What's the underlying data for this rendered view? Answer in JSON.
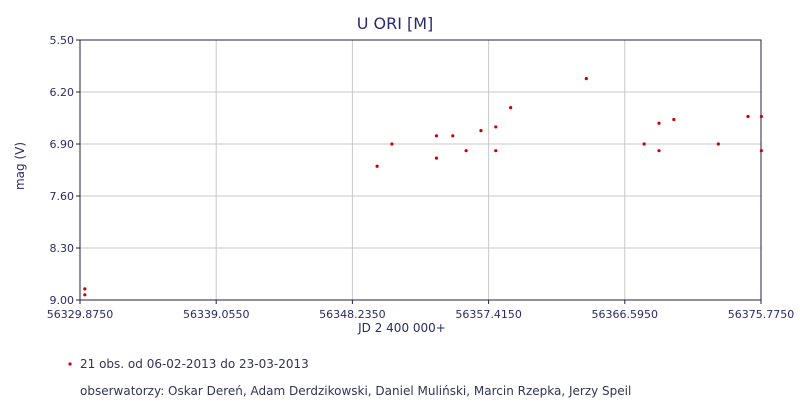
{
  "chart_data": {
    "type": "scatter",
    "title": "U ORI [M]",
    "xlabel": "JD 2 400 000+",
    "ylabel": "mag (V)",
    "xlim": [
      56329.875,
      56375.775
    ],
    "ylim": [
      9.0,
      5.5
    ],
    "y_inverted": true,
    "x_ticks": [
      "56329.8750",
      "56339.0550",
      "56348.2350",
      "56357.4150",
      "56366.5950",
      "56375.7750"
    ],
    "y_ticks": [
      "5.50",
      "6.20",
      "6.90",
      "7.60",
      "8.30",
      "9.00"
    ],
    "grid": true,
    "series": [
      {
        "color": "#cc0000",
        "points": [
          {
            "x": 56330.2,
            "y": 8.85
          },
          {
            "x": 56330.2,
            "y": 8.93
          },
          {
            "x": 56349.9,
            "y": 7.2
          },
          {
            "x": 56350.9,
            "y": 6.9
          },
          {
            "x": 56353.9,
            "y": 7.09
          },
          {
            "x": 56353.9,
            "y": 6.79
          },
          {
            "x": 56355.0,
            "y": 6.79
          },
          {
            "x": 56355.9,
            "y": 6.99
          },
          {
            "x": 56356.9,
            "y": 6.72
          },
          {
            "x": 56357.9,
            "y": 6.67
          },
          {
            "x": 56357.9,
            "y": 6.99
          },
          {
            "x": 56358.9,
            "y": 6.41
          },
          {
            "x": 56364.0,
            "y": 6.02
          },
          {
            "x": 56367.9,
            "y": 6.9
          },
          {
            "x": 56368.9,
            "y": 6.99
          },
          {
            "x": 56368.9,
            "y": 6.62
          },
          {
            "x": 56369.9,
            "y": 6.57
          },
          {
            "x": 56372.9,
            "y": 6.9
          },
          {
            "x": 56374.9,
            "y": 6.53
          },
          {
            "x": 56375.8,
            "y": 6.53
          },
          {
            "x": 56375.8,
            "y": 6.99
          }
        ]
      }
    ]
  },
  "legend": {
    "summary": "21 obs. od 06-02-2013 do 23-03-2013",
    "observers": "obserwatorzy: Oskar Dereń, Adam Derdzikowski, Daniel Muliński, Marcin Rzepka, Jerzy Speil"
  },
  "colors": {
    "plot_border": "#222244",
    "grid": "#c8c8c8",
    "point": "#cc0000"
  }
}
